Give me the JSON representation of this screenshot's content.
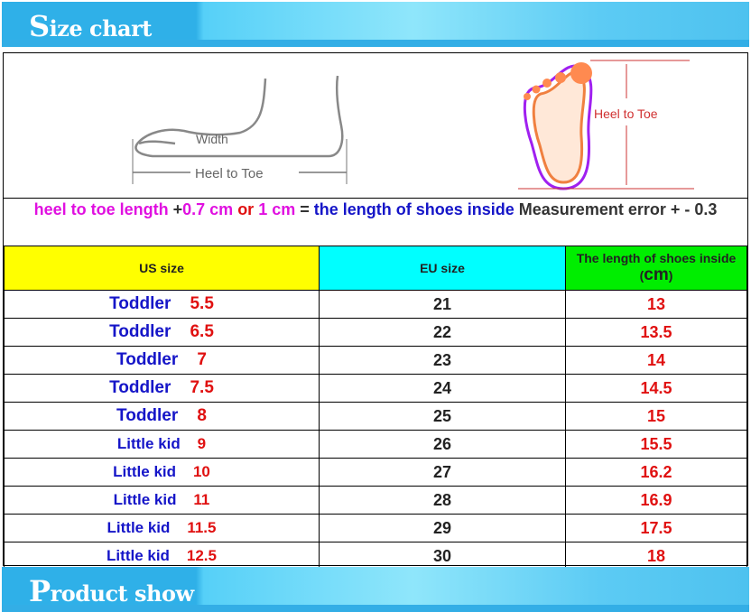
{
  "header": {
    "title_initial": "S",
    "title_rest": "ize chart"
  },
  "footer": {
    "title_initial": "P",
    "title_rest": "roduct show"
  },
  "diagram": {
    "width_label": "Width",
    "heel_to_toe_label": "Heel to Toe",
    "foot_label": "Heel to Toe"
  },
  "note": {
    "p1": "heel to toe length ",
    "p2": "+",
    "p3": "0.7 cm ",
    "p4": "or ",
    "p5": "1 cm ",
    "p6": "= ",
    "p7": "the length of shoes inside ",
    "p8": "Measurement error + -  0.3"
  },
  "table": {
    "headers": [
      "US size",
      "EU size",
      "The length of shoes inside (",
      "cm",
      ")"
    ],
    "header_colors": [
      "#ffff00",
      "#00ffff",
      "#00ee00"
    ],
    "rows": [
      {
        "cat": "Toddler",
        "us": "5.5",
        "eu": "21",
        "cm": "13"
      },
      {
        "cat": "Toddler",
        "us": "6.5",
        "eu": "22",
        "cm": "13.5"
      },
      {
        "cat": "Toddler",
        "us": "7",
        "eu": "23",
        "cm": "14"
      },
      {
        "cat": "Toddler",
        "us": "7.5",
        "eu": "24",
        "cm": "14.5"
      },
      {
        "cat": "Toddler",
        "us": "8",
        "eu": "25",
        "cm": "15"
      },
      {
        "cat": "Little kid",
        "us": "9",
        "eu": "26",
        "cm": "15.5"
      },
      {
        "cat": "Little kid",
        "us": "10",
        "eu": "27",
        "cm": "16.2"
      },
      {
        "cat": "Little kid",
        "us": "11",
        "eu": "28",
        "cm": "16.9"
      },
      {
        "cat": "Little kid",
        "us": "11.5",
        "eu": "29",
        "cm": "17.5"
      },
      {
        "cat": "Little kid",
        "us": "12.5",
        "eu": "30",
        "cm": "18"
      }
    ]
  }
}
